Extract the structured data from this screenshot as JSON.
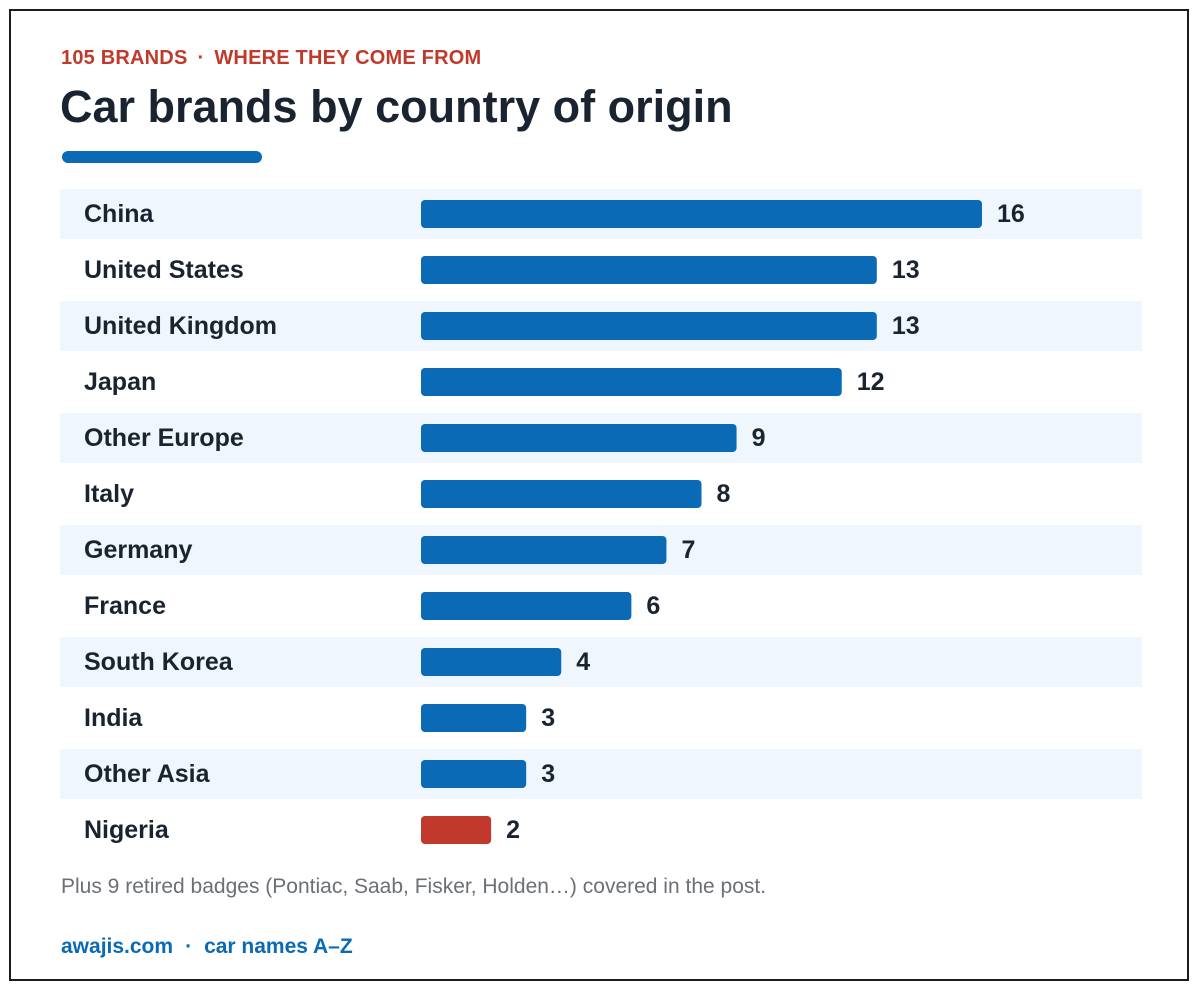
{
  "header": {
    "kicker_count": "105 BRANDS",
    "kicker_separator": "·",
    "kicker_tagline": "WHERE THEY COME FROM",
    "title": "Car brands by country of origin"
  },
  "colors": {
    "bar": "#0a6ab6",
    "highlight_bar": "#c0392b",
    "stripe": "#f0f6fd",
    "label": "#1a2330",
    "kicker": "#c0392b",
    "accent": "#0a6ab6"
  },
  "chart_data": {
    "type": "bar",
    "orientation": "horizontal",
    "categories": [
      "China",
      "United States",
      "United Kingdom",
      "Japan",
      "Other Europe",
      "Italy",
      "Germany",
      "France",
      "South Korea",
      "India",
      "Other Asia",
      "Nigeria"
    ],
    "values": [
      16,
      13,
      13,
      12,
      9,
      8,
      7,
      6,
      4,
      3,
      3,
      2
    ],
    "highlight": [
      "Nigeria"
    ],
    "data_labels": true,
    "grid": false,
    "xlim": [
      0,
      16
    ]
  },
  "note": "Plus 9 retired badges (Pontiac, Saab, Fisker, Holden…) covered in the post.",
  "footer": {
    "site": "awajis.com",
    "separator": "·",
    "section": "car names A–Z"
  }
}
